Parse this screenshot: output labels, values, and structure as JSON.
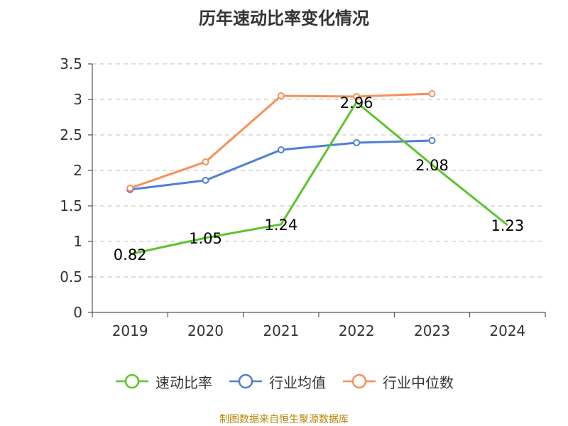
{
  "chart_data": {
    "type": "line",
    "title": "历年速动比率变化情况",
    "categories": [
      "2019",
      "2020",
      "2021",
      "2022",
      "2023",
      "2024"
    ],
    "y_ticks": [
      "0",
      "0.5",
      "1",
      "1.5",
      "2",
      "2.5",
      "3",
      "3.5"
    ],
    "ylim": [
      0,
      3.5
    ],
    "grid": true,
    "legend_position": "bottom",
    "series": [
      {
        "name": "速动比率",
        "color": "#5cc42b",
        "values": [
          0.82,
          1.05,
          1.24,
          2.96,
          2.08,
          1.23
        ],
        "labels": [
          "0.82",
          "1.05",
          "1.24",
          "2.96",
          "2.08",
          "1.23"
        ]
      },
      {
        "name": "行业均值",
        "color": "#4f7fd6",
        "values": [
          1.73,
          1.86,
          2.29,
          2.39,
          2.42,
          null
        ]
      },
      {
        "name": "行业中位数",
        "color": "#f7905a",
        "values": [
          1.75,
          2.12,
          3.05,
          3.04,
          3.08,
          null
        ]
      }
    ]
  },
  "source_text": "制图数据来自恒生聚源数据库"
}
